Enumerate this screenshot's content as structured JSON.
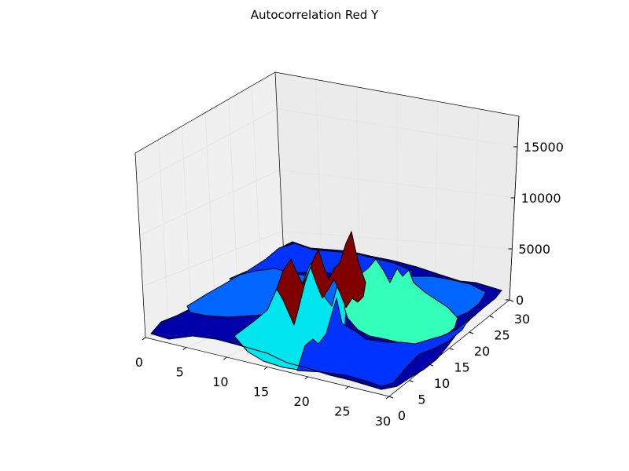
{
  "chart_data": {
    "type": "surface",
    "title": "Autocorrelation Red Y",
    "xlabel": "",
    "ylabel": "",
    "zlabel": "",
    "xlim": [
      0,
      30
    ],
    "ylim": [
      0,
      30
    ],
    "zlim": [
      0,
      18000
    ],
    "grid": true,
    "x_ticks": [
      "0",
      "5",
      "10",
      "15",
      "20",
      "25",
      "30"
    ],
    "y_ticks": [
      "0",
      "5",
      "10",
      "15",
      "20",
      "25",
      "30"
    ],
    "z_ticks": [
      "0",
      "5000",
      "10000",
      "15000"
    ],
    "colormap": "jet",
    "colors": {
      "dark_blue": "#0000aa",
      "blue": "#0033ff",
      "sky_blue": "#0066ff",
      "cyan": "#00e5ee",
      "aquamarine": "#33ffbb",
      "dark_red": "#800000",
      "pane_left": "#f0f0f0",
      "pane_back": "#ebebeb",
      "pane_floor": "#f2f2f2"
    },
    "surface_patches": [
      {
        "name": "outer-ring-near-left",
        "color": "dark_blue",
        "approx_value": 700
      },
      {
        "name": "middle-ring-left",
        "color": "sky_blue",
        "approx_value": 2200
      },
      {
        "name": "back-ring",
        "color": "blue",
        "approx_value": 2800
      },
      {
        "name": "front-lobe",
        "color": "cyan",
        "approx_value": 6500
      },
      {
        "name": "right-lobe",
        "color": "aquamarine",
        "approx_value": 5500
      },
      {
        "name": "central-peaks",
        "color": "dark_red",
        "approx_value": 11000
      },
      {
        "name": "outer-ring-right",
        "color": "dark_blue",
        "approx_value": 700
      },
      {
        "name": "front-right-ring",
        "color": "blue",
        "approx_value": 2800
      }
    ],
    "peaks": [
      {
        "x": 15,
        "y": 15,
        "z": 13500
      },
      {
        "x": 13,
        "y": 15,
        "z": 7000
      },
      {
        "x": 17,
        "y": 13,
        "z": 6500
      },
      {
        "x": 12,
        "y": 17,
        "z": 6000
      },
      {
        "x": 18,
        "y": 17,
        "z": 5000
      }
    ]
  }
}
